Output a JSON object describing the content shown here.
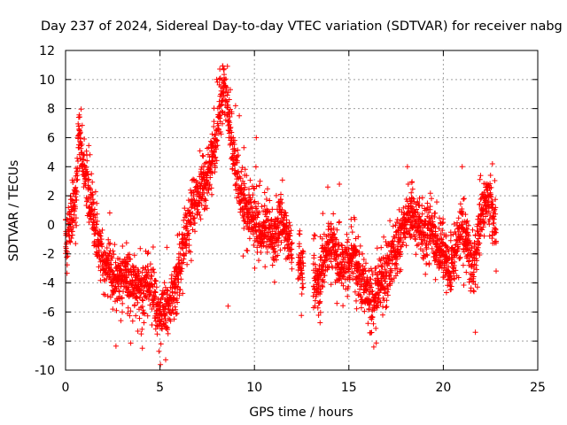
{
  "chart_data": {
    "type": "scatter",
    "title": "Day 237 of 2024, Sidereal Day-to-day VTEC variation (SDTVAR) for receiver nabg",
    "xlabel": "GPS time / hours",
    "ylabel": "SDTVAR / TECUs",
    "xlim": [
      0,
      25
    ],
    "ylim": [
      -10,
      12
    ],
    "xticks": [
      0,
      5,
      10,
      15,
      20,
      25
    ],
    "xtick_labels": [
      "0",
      "5",
      "10",
      "15",
      "20",
      "25"
    ],
    "yticks": [
      -10,
      -8,
      -6,
      -4,
      -2,
      0,
      2,
      4,
      6,
      8,
      10,
      12
    ],
    "ytick_labels": [
      "-10",
      "-8",
      "-6",
      "-4",
      "-2",
      "0",
      "2",
      "4",
      "6",
      "8",
      "10",
      "12"
    ],
    "grid": true,
    "marker": "plus",
    "color": "#ff0000",
    "trend": {
      "x": [
        0.0,
        0.2,
        0.4,
        0.6,
        0.7,
        0.8,
        1.0,
        1.2,
        1.4,
        1.7,
        2.0,
        2.3,
        2.6,
        3.0,
        3.5,
        4.0,
        4.5,
        5.0,
        5.3,
        5.6,
        6.0,
        6.4,
        6.8,
        7.2,
        7.6,
        8.0,
        8.2,
        8.4,
        8.6,
        8.8,
        9.0,
        9.3,
        9.6,
        10.0,
        10.3,
        10.6,
        11.0,
        11.3,
        11.6,
        12.0,
        12.5,
        13.0,
        13.3,
        13.6,
        14.0,
        14.3,
        14.6,
        15.0,
        15.3,
        15.6,
        16.0,
        16.3,
        16.6,
        17.0,
        17.3,
        17.6,
        18.0,
        18.3,
        18.6,
        19.0,
        19.3,
        19.6,
        20.0,
        20.3,
        20.6,
        21.0,
        21.3,
        21.6,
        21.9,
        22.2,
        22.5,
        22.8
      ],
      "y": [
        -1.5,
        0.5,
        1.0,
        3.5,
        6.0,
        5.5,
        4.0,
        2.5,
        0.5,
        -1.0,
        -2.5,
        -3.0,
        -4.0,
        -3.5,
        -4.0,
        -4.8,
        -4.0,
        -6.5,
        -6.0,
        -5.0,
        -3.0,
        -0.5,
        1.5,
        2.5,
        3.5,
        6.0,
        8.5,
        9.5,
        8.0,
        6.0,
        4.0,
        2.0,
        1.0,
        0.5,
        -1.0,
        0.0,
        -1.0,
        0.5,
        0.0,
        -2.0,
        -2.5,
        -3.0,
        -4.0,
        -3.0,
        -1.0,
        -2.0,
        -3.0,
        -2.5,
        -2.0,
        -4.0,
        -4.5,
        -5.5,
        -4.0,
        -3.5,
        -2.0,
        -1.5,
        0.5,
        1.0,
        0.0,
        -1.0,
        0.0,
        -1.5,
        -2.0,
        -3.0,
        -2.0,
        0.0,
        -1.5,
        -3.0,
        0.0,
        1.5,
        2.0,
        -0.5
      ]
    },
    "gaps": [
      [
        12.0,
        12.3
      ],
      [
        12.6,
        13.1
      ]
    ],
    "noise": 0.9,
    "points_per_hour": 110,
    "outliers": [
      [
        8.0,
        10.0
      ],
      [
        8.2,
        10.1
      ],
      [
        8.35,
        9.8
      ],
      [
        9.0,
        8.2
      ],
      [
        9.2,
        7.5
      ],
      [
        10.1,
        6.0
      ],
      [
        10.3,
        3.0
      ],
      [
        18.1,
        4.0
      ],
      [
        21.0,
        4.0
      ],
      [
        22.6,
        4.2
      ],
      [
        0.7,
        7.4
      ],
      [
        5.05,
        -8.2
      ],
      [
        16.2,
        -6.5
      ],
      [
        21.7,
        -7.4
      ],
      [
        8.6,
        -5.6
      ],
      [
        17.0,
        -5.2
      ],
      [
        13.4,
        -5.4
      ],
      [
        3.0,
        -6.0
      ],
      [
        2.5,
        -5.8
      ],
      [
        11.4,
        2.1
      ],
      [
        14.5,
        2.8
      ]
    ]
  }
}
